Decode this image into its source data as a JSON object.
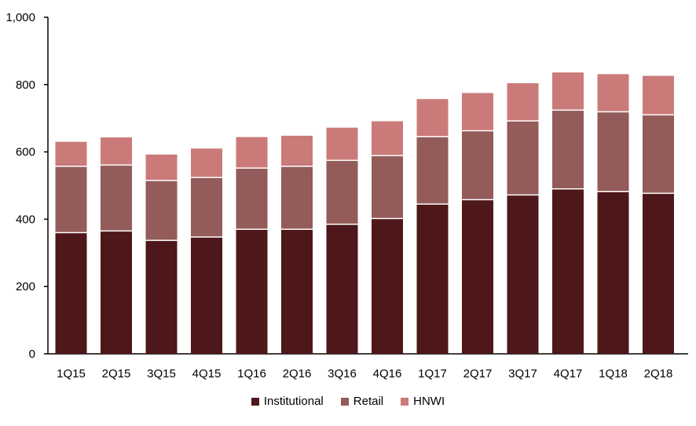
{
  "chart_data": {
    "type": "bar",
    "stacked": true,
    "categories": [
      "1Q15",
      "2Q15",
      "3Q15",
      "4Q15",
      "1Q16",
      "2Q16",
      "3Q16",
      "4Q16",
      "1Q17",
      "2Q17",
      "3Q17",
      "4Q17",
      "1Q18",
      "2Q18"
    ],
    "series": [
      {
        "name": "Institutional",
        "color": "#4e1719",
        "values": [
          360,
          365,
          337,
          347,
          370,
          370,
          385,
          402,
          445,
          458,
          472,
          490,
          482,
          477
        ]
      },
      {
        "name": "Retail",
        "color": "#935b5a",
        "values": [
          197,
          196,
          178,
          177,
          182,
          187,
          190,
          187,
          200,
          205,
          220,
          234,
          237,
          233
        ]
      },
      {
        "name": "HNWI",
        "color": "#cb7a7a",
        "values": [
          73,
          82,
          77,
          86,
          92,
          91,
          97,
          102,
          112,
          112,
          112,
          112,
          112,
          116
        ]
      }
    ],
    "ylim": [
      0,
      1000
    ],
    "yticks": [
      "0",
      "200",
      "400",
      "600",
      "800",
      "1,000"
    ],
    "ytick_values": [
      0,
      200,
      400,
      600,
      800,
      1000
    ],
    "legend_position": "bottom",
    "grid": false
  }
}
